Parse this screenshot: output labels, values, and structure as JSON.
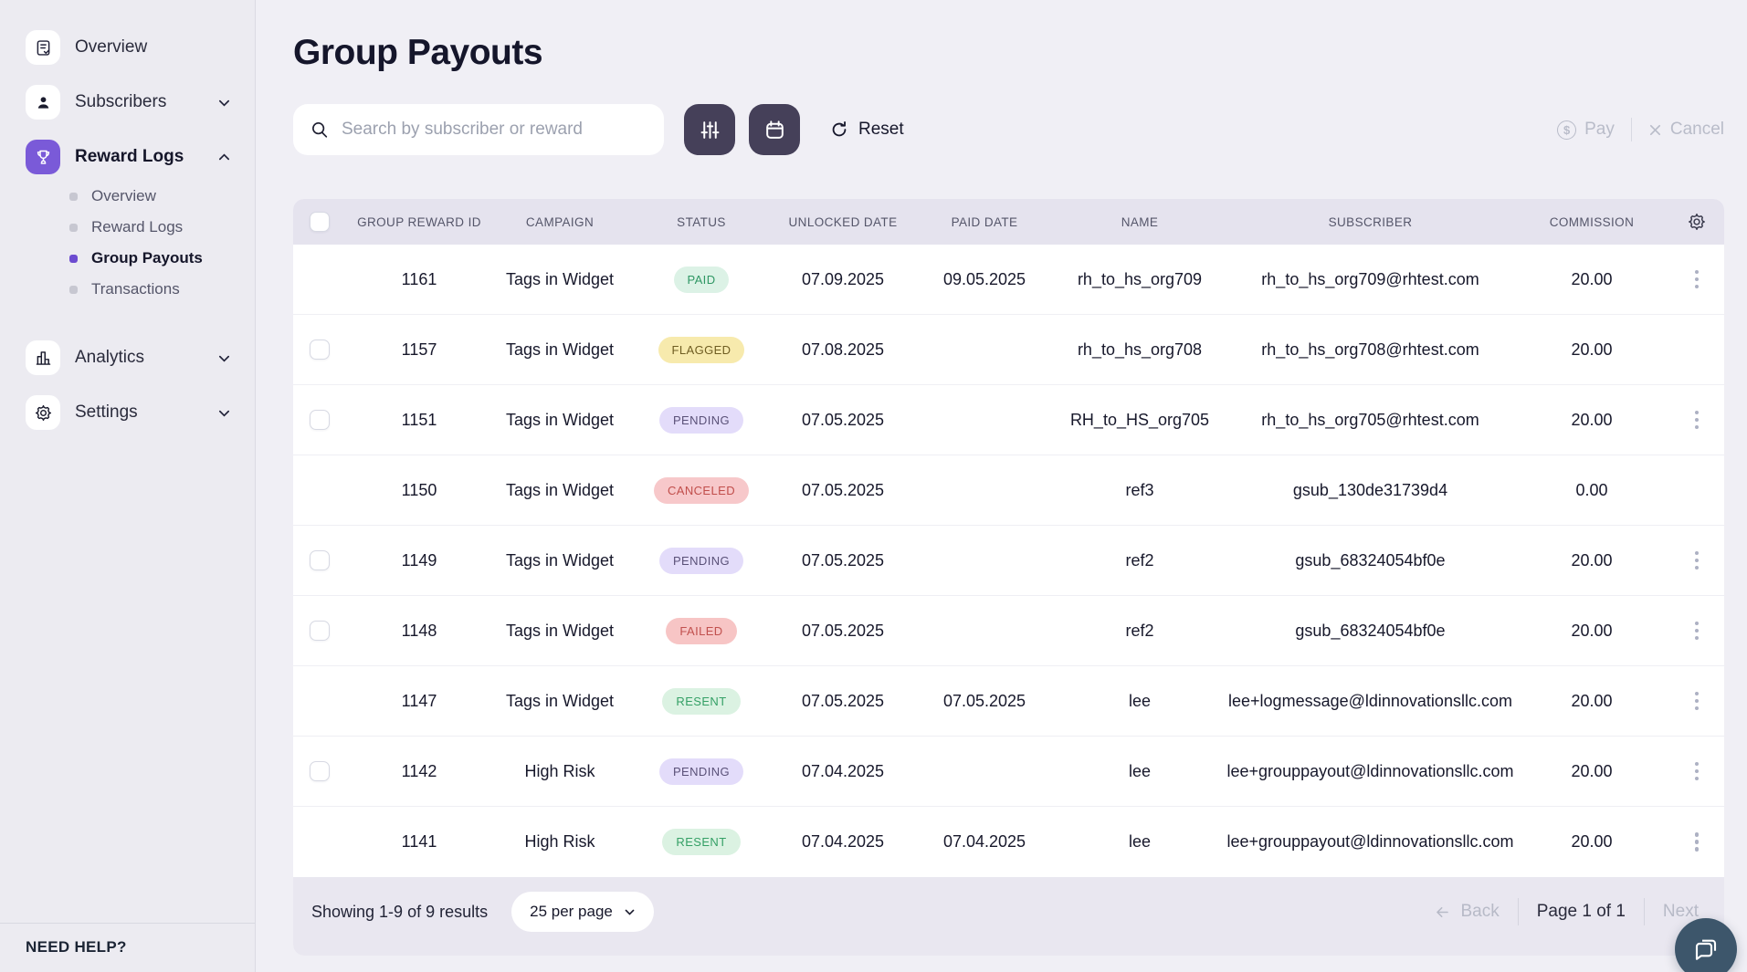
{
  "sidebar": {
    "items": [
      {
        "label": "Overview",
        "icon": "document-check-icon",
        "chevron": null
      },
      {
        "label": "Subscribers",
        "icon": "user-icon",
        "chevron": "down"
      },
      {
        "label": "Reward Logs",
        "icon": "trophy-icon",
        "chevron": "up",
        "active": true,
        "children": [
          {
            "label": "Overview"
          },
          {
            "label": "Reward Logs"
          },
          {
            "label": "Group Payouts",
            "active": true
          },
          {
            "label": "Transactions"
          }
        ]
      },
      {
        "label": "Analytics",
        "icon": "bar-chart-icon",
        "chevron": "down"
      },
      {
        "label": "Settings",
        "icon": "gear-icon",
        "chevron": "down"
      }
    ],
    "need_help": "NEED HELP?"
  },
  "page": {
    "title": "Group Payouts"
  },
  "toolbar": {
    "search_placeholder": "Search by subscriber or reward",
    "filter_icon": "sliders-icon",
    "calendar_icon": "calendar-icon",
    "reset_label": "Reset",
    "pay_label": "Pay",
    "cancel_label": "Cancel"
  },
  "table": {
    "headers": [
      "GROUP REWARD ID",
      "CAMPAIGN",
      "STATUS",
      "UNLOCKED DATE",
      "PAID DATE",
      "NAME",
      "SUBSCRIBER",
      "COMMISSION"
    ],
    "rows": [
      {
        "id": "1161",
        "campaign": "Tags in Widget",
        "status": "PAID",
        "unlocked_date": "07.09.2025",
        "paid_date": "09.05.2025",
        "name": "rh_to_hs_org709",
        "subscriber": "rh_to_hs_org709@rhtest.com",
        "commission": "20.00",
        "selectable": false,
        "has_menu": true
      },
      {
        "id": "1157",
        "campaign": "Tags in Widget",
        "status": "FLAGGED",
        "unlocked_date": "07.08.2025",
        "paid_date": "",
        "name": "rh_to_hs_org708",
        "subscriber": "rh_to_hs_org708@rhtest.com",
        "commission": "20.00",
        "selectable": true,
        "has_menu": false
      },
      {
        "id": "1151",
        "campaign": "Tags in Widget",
        "status": "PENDING",
        "unlocked_date": "07.05.2025",
        "paid_date": "",
        "name": "RH_to_HS_org705",
        "subscriber": "rh_to_hs_org705@rhtest.com",
        "commission": "20.00",
        "selectable": true,
        "has_menu": true
      },
      {
        "id": "1150",
        "campaign": "Tags in Widget",
        "status": "CANCELED",
        "unlocked_date": "07.05.2025",
        "paid_date": "",
        "name": "ref3",
        "subscriber": "gsub_130de31739d4",
        "commission": "0.00",
        "selectable": false,
        "has_menu": false
      },
      {
        "id": "1149",
        "campaign": "Tags in Widget",
        "status": "PENDING",
        "unlocked_date": "07.05.2025",
        "paid_date": "",
        "name": "ref2",
        "subscriber": "gsub_68324054bf0e",
        "commission": "20.00",
        "selectable": true,
        "has_menu": true
      },
      {
        "id": "1148",
        "campaign": "Tags in Widget",
        "status": "FAILED",
        "unlocked_date": "07.05.2025",
        "paid_date": "",
        "name": "ref2",
        "subscriber": "gsub_68324054bf0e",
        "commission": "20.00",
        "selectable": true,
        "has_menu": true
      },
      {
        "id": "1147",
        "campaign": "Tags in Widget",
        "status": "RESENT",
        "unlocked_date": "07.05.2025",
        "paid_date": "07.05.2025",
        "name": "lee",
        "subscriber": "lee+logmessage@ldinnovationsllc.com",
        "commission": "20.00",
        "selectable": false,
        "has_menu": true
      },
      {
        "id": "1142",
        "campaign": "High Risk",
        "status": "PENDING",
        "unlocked_date": "07.04.2025",
        "paid_date": "",
        "name": "lee",
        "subscriber": "lee+grouppayout@ldinnovationsllc.com",
        "commission": "20.00",
        "selectable": true,
        "has_menu": true
      },
      {
        "id": "1141",
        "campaign": "High Risk",
        "status": "RESENT",
        "unlocked_date": "07.04.2025",
        "paid_date": "07.04.2025",
        "name": "lee",
        "subscriber": "lee+grouppayout@ldinnovationsllc.com",
        "commission": "20.00",
        "selectable": false,
        "has_menu": true
      }
    ]
  },
  "status_styles": {
    "PAID": {
      "bg": "#DCF2E6",
      "fg": "#2F9764"
    },
    "FLAGGED": {
      "bg": "#F7EAAD",
      "fg": "#6F5D22"
    },
    "PENDING": {
      "bg": "#E3DCFA",
      "fg": "#5A5178"
    },
    "CANCELED": {
      "bg": "#F7C8CA",
      "fg": "#C14E4B"
    },
    "FAILED": {
      "bg": "#F7C5C5",
      "fg": "#C1504E"
    },
    "RESENT": {
      "bg": "#DBF2E2",
      "fg": "#35A066"
    }
  },
  "footer": {
    "showing": "Showing 1-9 of 9 results",
    "per_page": "25 per page",
    "back_label": "Back",
    "page_label": "Page 1 of 1",
    "next_label": "Next"
  },
  "colors": {
    "accent_purple": "#7A5AD8",
    "dark_button": "#454059",
    "chat_button": "#3D566B",
    "header_row_bg": "#E5E3EE",
    "footer_bg": "#E9E7F0",
    "sidebar_bg": "#ECEBF1",
    "main_bg": "#F0EFF5"
  }
}
